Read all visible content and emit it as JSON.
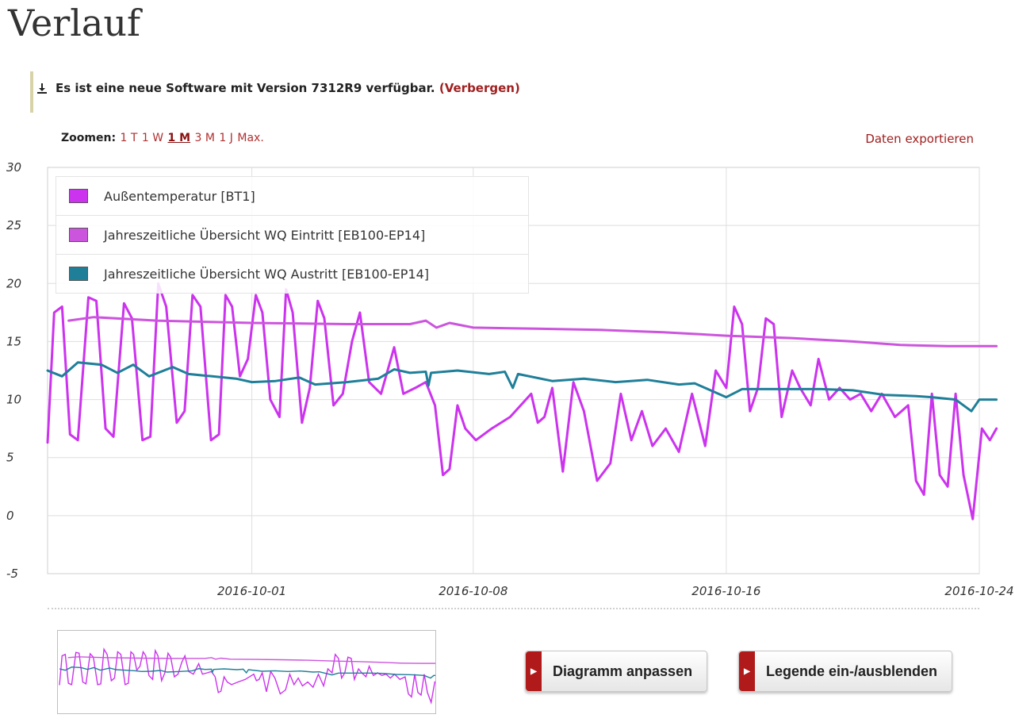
{
  "page": {
    "title": "Verlauf"
  },
  "notice": {
    "text": "Es ist eine neue Software mit Version 7312R9 verfügbar.",
    "hide_link": "(Verbergen)"
  },
  "toolbar": {
    "zoom_label": "Zoomen:",
    "zoom_options": [
      "1 T",
      "1 W",
      "1 M",
      "3 M",
      "1 J",
      "Max."
    ],
    "zoom_active": "1 M",
    "export_label": "Daten exportieren"
  },
  "buttons": {
    "customize": "Diagramm anpassen",
    "legend_toggle": "Legende ein-/ausblenden"
  },
  "colors": {
    "accent": "#b01a1a",
    "link": "#a02020",
    "bt1": "#cc33ee",
    "eintritt": "#cc55dd",
    "austritt": "#1f7f99"
  },
  "chart_data": {
    "type": "line",
    "title": "",
    "xlabel": "",
    "ylabel": "",
    "ylim": [
      -5,
      30
    ],
    "yticks": [
      -5,
      0,
      5,
      10,
      15,
      20,
      25,
      30
    ],
    "xlim": [
      "2016-09-24 13:00",
      "2016-10-24 00:00"
    ],
    "xticks": [
      "2016-10-01",
      "2016-10-08",
      "2016-10-16",
      "2016-10-24"
    ],
    "grid": true,
    "legend_position": "top-left",
    "series": [
      {
        "name": "Außentemperatur [BT1]",
        "color": "#cc33ee",
        "points": [
          [
            "2016-09-24 13:00",
            6.3
          ],
          [
            "2016-09-24 18:00",
            17.5
          ],
          [
            "2016-09-25 00:00",
            18.0
          ],
          [
            "2016-09-25 06:00",
            7.0
          ],
          [
            "2016-09-25 12:00",
            6.5
          ],
          [
            "2016-09-25 20:00",
            18.8
          ],
          [
            "2016-09-26 02:00",
            18.5
          ],
          [
            "2016-09-26 09:00",
            7.5
          ],
          [
            "2016-09-26 15:00",
            6.8
          ],
          [
            "2016-09-26 23:00",
            18.3
          ],
          [
            "2016-09-27 05:00",
            17.0
          ],
          [
            "2016-09-27 13:00",
            6.5
          ],
          [
            "2016-09-27 19:00",
            6.8
          ],
          [
            "2016-09-28 01:00",
            20.0
          ],
          [
            "2016-09-28 07:00",
            18.0
          ],
          [
            "2016-09-28 15:00",
            8.0
          ],
          [
            "2016-09-28 21:00",
            9.0
          ],
          [
            "2016-09-29 03:00",
            19.0
          ],
          [
            "2016-09-29 09:00",
            18.0
          ],
          [
            "2016-09-29 17:00",
            6.5
          ],
          [
            "2016-09-29 23:00",
            7.0
          ],
          [
            "2016-09-30 04:00",
            19.0
          ],
          [
            "2016-09-30 09:00",
            18.0
          ],
          [
            "2016-09-30 15:00",
            12.0
          ],
          [
            "2016-09-30 21:00",
            13.5
          ],
          [
            "2016-10-01 03:00",
            19.0
          ],
          [
            "2016-10-01 08:00",
            17.5
          ],
          [
            "2016-10-01 14:00",
            10.0
          ],
          [
            "2016-10-01 21:00",
            8.5
          ],
          [
            "2016-10-02 02:00",
            19.5
          ],
          [
            "2016-10-02 07:00",
            17.5
          ],
          [
            "2016-10-02 14:00",
            8.0
          ],
          [
            "2016-10-02 20:00",
            11.0
          ],
          [
            "2016-10-03 02:00",
            18.5
          ],
          [
            "2016-10-03 07:00",
            17.0
          ],
          [
            "2016-10-03 14:00",
            9.5
          ],
          [
            "2016-10-03 21:00",
            10.5
          ],
          [
            "2016-10-04 04:00",
            15.0
          ],
          [
            "2016-10-04 10:00",
            17.5
          ],
          [
            "2016-10-04 17:00",
            11.5
          ],
          [
            "2016-10-05 02:00",
            10.5
          ],
          [
            "2016-10-05 12:00",
            14.5
          ],
          [
            "2016-10-05 19:00",
            10.5
          ],
          [
            "2016-10-06 04:00",
            11.0
          ],
          [
            "2016-10-06 12:00",
            11.5
          ],
          [
            "2016-10-06 19:00",
            9.5
          ],
          [
            "2016-10-07 01:00",
            3.5
          ],
          [
            "2016-10-07 06:00",
            4.0
          ],
          [
            "2016-10-07 12:00",
            9.5
          ],
          [
            "2016-10-07 18:00",
            7.5
          ],
          [
            "2016-10-08 02:00",
            6.5
          ],
          [
            "2016-10-08 14:00",
            7.5
          ],
          [
            "2016-10-09 04:00",
            8.5
          ],
          [
            "2016-10-09 20:00",
            10.5
          ],
          [
            "2016-10-10 01:00",
            8.0
          ],
          [
            "2016-10-10 06:00",
            8.5
          ],
          [
            "2016-10-10 12:00",
            11.0
          ],
          [
            "2016-10-10 20:00",
            3.8
          ],
          [
            "2016-10-11 04:00",
            11.5
          ],
          [
            "2016-10-11 12:00",
            9.0
          ],
          [
            "2016-10-11 22:00",
            3.0
          ],
          [
            "2016-10-12 08:00",
            4.5
          ],
          [
            "2016-10-12 16:00",
            10.5
          ],
          [
            "2016-10-13 00:00",
            6.5
          ],
          [
            "2016-10-13 08:00",
            9.0
          ],
          [
            "2016-10-13 16:00",
            6.0
          ],
          [
            "2016-10-14 02:00",
            7.5
          ],
          [
            "2016-10-14 12:00",
            5.5
          ],
          [
            "2016-10-14 22:00",
            10.5
          ],
          [
            "2016-10-15 08:00",
            6.0
          ],
          [
            "2016-10-15 16:00",
            12.5
          ],
          [
            "2016-10-16 00:00",
            11.0
          ],
          [
            "2016-10-16 06:00",
            18.0
          ],
          [
            "2016-10-16 12:00",
            16.5
          ],
          [
            "2016-10-16 18:00",
            9.0
          ],
          [
            "2016-10-17 00:00",
            11.0
          ],
          [
            "2016-10-17 06:00",
            17.0
          ],
          [
            "2016-10-17 12:00",
            16.5
          ],
          [
            "2016-10-17 18:00",
            8.5
          ],
          [
            "2016-10-18 02:00",
            12.5
          ],
          [
            "2016-10-18 08:00",
            11.0
          ],
          [
            "2016-10-18 16:00",
            9.5
          ],
          [
            "2016-10-18 22:00",
            13.5
          ],
          [
            "2016-10-19 06:00",
            10.0
          ],
          [
            "2016-10-19 14:00",
            11.0
          ],
          [
            "2016-10-19 22:00",
            10.0
          ],
          [
            "2016-10-20 06:00",
            10.5
          ],
          [
            "2016-10-20 14:00",
            9.0
          ],
          [
            "2016-10-20 22:00",
            10.5
          ],
          [
            "2016-10-21 08:00",
            8.5
          ],
          [
            "2016-10-21 18:00",
            9.5
          ],
          [
            "2016-10-22 00:00",
            3.0
          ],
          [
            "2016-10-22 06:00",
            1.8
          ],
          [
            "2016-10-22 12:00",
            10.5
          ],
          [
            "2016-10-22 18:00",
            3.5
          ],
          [
            "2016-10-23 00:00",
            2.5
          ],
          [
            "2016-10-23 06:00",
            10.5
          ],
          [
            "2016-10-23 12:00",
            3.5
          ],
          [
            "2016-10-23 19:00",
            -0.3
          ],
          [
            "2016-10-24 02:00",
            7.5
          ],
          [
            "2016-10-24 08:00",
            6.5
          ],
          [
            "2016-10-24 13:00",
            7.5
          ]
        ]
      },
      {
        "name": "Jahreszeitliche Übersicht WQ Eintritt [EB100-EP14]",
        "color": "#cc55dd",
        "points": [
          [
            "2016-09-25 05:00",
            16.8
          ],
          [
            "2016-09-26 00:00",
            17.1
          ],
          [
            "2016-09-28 00:00",
            16.8
          ],
          [
            "2016-10-01 00:00",
            16.6
          ],
          [
            "2016-10-04 00:00",
            16.5
          ],
          [
            "2016-10-06 00:00",
            16.5
          ],
          [
            "2016-10-06 12:00",
            16.8
          ],
          [
            "2016-10-06 20:00",
            16.2
          ],
          [
            "2016-10-07 06:00",
            16.6
          ],
          [
            "2016-10-08 00:00",
            16.2
          ],
          [
            "2016-10-10 00:00",
            16.1
          ],
          [
            "2016-10-12 00:00",
            16.0
          ],
          [
            "2016-10-14 00:00",
            15.8
          ],
          [
            "2016-10-16 00:00",
            15.5
          ],
          [
            "2016-10-18 00:00",
            15.3
          ],
          [
            "2016-10-20 00:00",
            15.0
          ],
          [
            "2016-10-21 12:00",
            14.7
          ],
          [
            "2016-10-23 00:00",
            14.6
          ],
          [
            "2016-10-24 13:00",
            14.6
          ]
        ]
      },
      {
        "name": "Jahreszeitliche Übersicht WQ Austritt [EB100-EP14]",
        "color": "#1f7f99",
        "points": [
          [
            "2016-09-24 13:00",
            12.5
          ],
          [
            "2016-09-25 00:00",
            12.0
          ],
          [
            "2016-09-25 12:00",
            13.2
          ],
          [
            "2016-09-26 06:00",
            13.0
          ],
          [
            "2016-09-26 18:00",
            12.3
          ],
          [
            "2016-09-27 06:00",
            13.0
          ],
          [
            "2016-09-27 18:00",
            12.0
          ],
          [
            "2016-09-28 12:00",
            12.8
          ],
          [
            "2016-09-29 00:00",
            12.2
          ],
          [
            "2016-09-29 18:00",
            12.0
          ],
          [
            "2016-09-30 12:00",
            11.8
          ],
          [
            "2016-10-01 00:00",
            11.5
          ],
          [
            "2016-10-01 18:00",
            11.6
          ],
          [
            "2016-10-02 12:00",
            11.9
          ],
          [
            "2016-10-03 00:00",
            11.3
          ],
          [
            "2016-10-04 00:00",
            11.5
          ],
          [
            "2016-10-05 00:00",
            11.8
          ],
          [
            "2016-10-05 12:00",
            12.6
          ],
          [
            "2016-10-06 00:00",
            12.3
          ],
          [
            "2016-10-06 12:00",
            12.4
          ],
          [
            "2016-10-06 14:00",
            11.2
          ],
          [
            "2016-10-06 16:00",
            12.3
          ],
          [
            "2016-10-07 12:00",
            12.5
          ],
          [
            "2016-10-08 12:00",
            12.2
          ],
          [
            "2016-10-09 00:00",
            12.4
          ],
          [
            "2016-10-09 06:00",
            11.0
          ],
          [
            "2016-10-09 10:00",
            12.2
          ],
          [
            "2016-10-10 12:00",
            11.6
          ],
          [
            "2016-10-11 12:00",
            11.8
          ],
          [
            "2016-10-12 12:00",
            11.5
          ],
          [
            "2016-10-13 12:00",
            11.7
          ],
          [
            "2016-10-14 12:00",
            11.3
          ],
          [
            "2016-10-15 00:00",
            11.4
          ],
          [
            "2016-10-15 12:00",
            10.8
          ],
          [
            "2016-10-16 00:00",
            10.2
          ],
          [
            "2016-10-16 12:00",
            10.9
          ],
          [
            "2016-10-18 00:00",
            10.9
          ],
          [
            "2016-10-19 00:00",
            10.9
          ],
          [
            "2016-10-20 00:00",
            10.8
          ],
          [
            "2016-10-21 00:00",
            10.4
          ],
          [
            "2016-10-22 00:00",
            10.3
          ],
          [
            "2016-10-22 12:00",
            10.2
          ],
          [
            "2016-10-23 06:00",
            10.0
          ],
          [
            "2016-10-23 18:00",
            9.0
          ],
          [
            "2016-10-24 00:00",
            10.0
          ],
          [
            "2016-10-24 13:00",
            10.0
          ]
        ]
      }
    ]
  }
}
